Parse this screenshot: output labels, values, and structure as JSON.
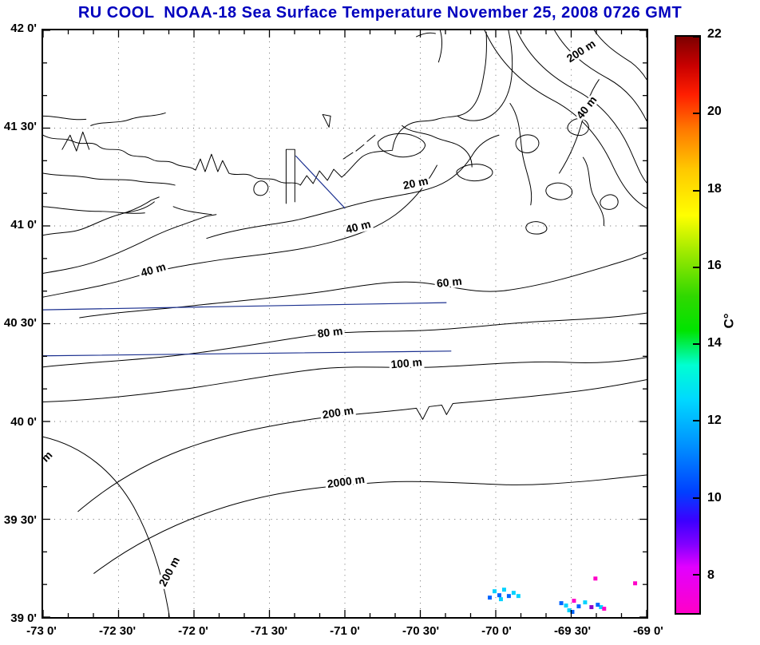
{
  "title": {
    "text": "RU COOL  NOAA-18 Sea Surface Temperature November 25, 2008 0726 GMT",
    "color": "#0000be"
  },
  "map": {
    "y_axis_ticks": [
      "42 0'",
      "41 30'",
      "41 0'",
      "40 30'",
      "40 0'",
      "39 30'",
      "39 0'"
    ],
    "x_axis_ticks": [
      "-73 0'",
      "-72 30'",
      "-72 0'",
      "-71 30'",
      "-71 0'",
      "-70 30'",
      "-70 0'",
      "-69 30'",
      "-69 0'"
    ],
    "contour_labels": [
      "20 m",
      "40 m",
      "40 m",
      "40 m",
      "60 m",
      "80 m",
      "100 m",
      "200 m",
      "200 m",
      "200 m",
      "2000 m",
      "m"
    ],
    "depth_levels_m": [
      20,
      40,
      60,
      80,
      100,
      200,
      2000
    ],
    "front_line_color": "#1a2f8f",
    "sst_pixel_colors": {
      "cyan": "#00d2ff",
      "blue": "#0064ff",
      "magenta": "#ff00c8",
      "purple": "#8a00cc"
    }
  },
  "colorbar": {
    "unit_label": "C°",
    "min": 7,
    "max": 22,
    "tick_values": [
      8,
      10,
      12,
      14,
      16,
      18,
      20,
      22
    ],
    "tick_labels": [
      "22",
      "20",
      "18",
      "16",
      "14",
      "12",
      "10",
      "8"
    ],
    "stops": [
      [
        "#ff00c8",
        0
      ],
      [
        "#e100ff",
        8
      ],
      [
        "#8000ff",
        12
      ],
      [
        "#3c00ff",
        16
      ],
      [
        "#0040ff",
        21
      ],
      [
        "#0090ff",
        29
      ],
      [
        "#00d8ff",
        37
      ],
      [
        "#00ffd2",
        43
      ],
      [
        "#00e400",
        49
      ],
      [
        "#30d800",
        55
      ],
      [
        "#96e800",
        62
      ],
      [
        "#ffff00",
        69
      ],
      [
        "#ffc800",
        77
      ],
      [
        "#ff7800",
        84
      ],
      [
        "#ff1e00",
        90
      ],
      [
        "#c80000",
        95
      ],
      [
        "#7d0000",
        100
      ]
    ]
  }
}
